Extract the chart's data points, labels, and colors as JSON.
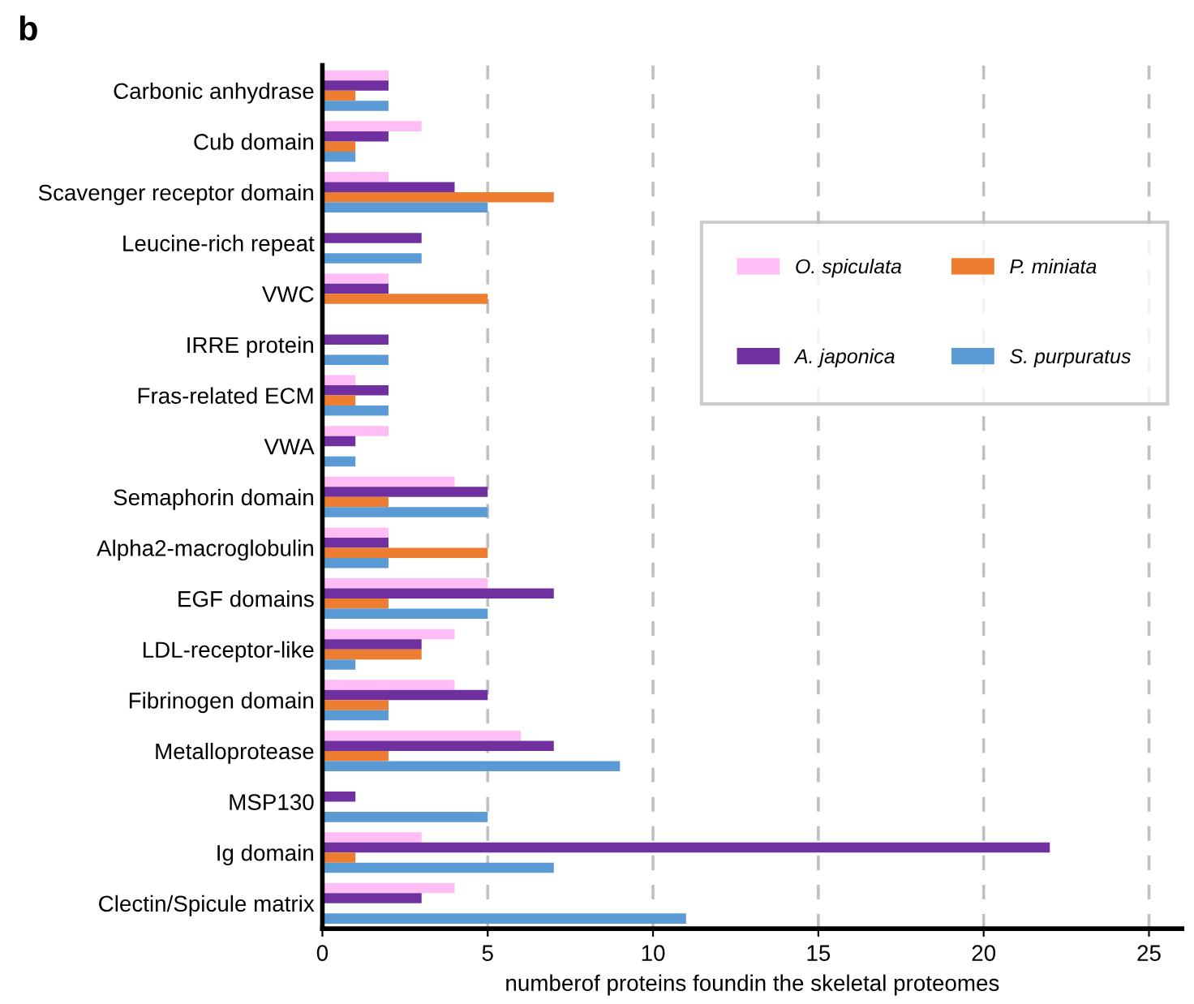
{
  "chart_data": {
    "type": "bar",
    "orientation": "horizontal",
    "xlabel": "numberof proteins foundin the skeletal proteomes",
    "annotations": [
      "b"
    ],
    "categories": [
      "Carbonic anhydrase",
      "Cub domain",
      "Scavenger receptor domain",
      "Leucine-rich repeat",
      "VWC",
      "IRRE protein",
      "Fras-related ECM",
      "VWA",
      "Semaphorin domain",
      "Alpha2-macroglobulin",
      "EGF domains",
      "LDL-receptor-like",
      "Fibrinogen domain",
      "Metalloprotease",
      "MSP130",
      "Ig domain",
      "Clectin/Spicule matrix"
    ],
    "series": [
      {
        "name": "O. spiculata",
        "color": "#ffbdf5",
        "values": [
          2,
          3,
          2,
          null,
          2,
          null,
          1,
          2,
          4,
          2,
          5,
          4,
          4,
          6,
          null,
          3,
          4
        ]
      },
      {
        "name": "A. japonica",
        "color": "#7030a0",
        "values": [
          2,
          2,
          4,
          3,
          2,
          2,
          2,
          1,
          5,
          2,
          7,
          3,
          5,
          7,
          1,
          22,
          3
        ]
      },
      {
        "name": "P. miniata",
        "color": "#ed7d31",
        "values": [
          1,
          1,
          7,
          null,
          5,
          null,
          1,
          null,
          2,
          5,
          2,
          3,
          2,
          2,
          null,
          1,
          null
        ]
      },
      {
        "name": "S. purpuratus",
        "color": "#5b9bd5",
        "values": [
          2,
          1,
          5,
          3,
          null,
          2,
          2,
          1,
          5,
          2,
          5,
          1,
          2,
          9,
          5,
          7,
          11
        ]
      }
    ],
    "xlim": [
      0,
      26
    ],
    "xticks": [
      0,
      5,
      10,
      15,
      20,
      25
    ],
    "grid": "x",
    "legend": "top right"
  }
}
